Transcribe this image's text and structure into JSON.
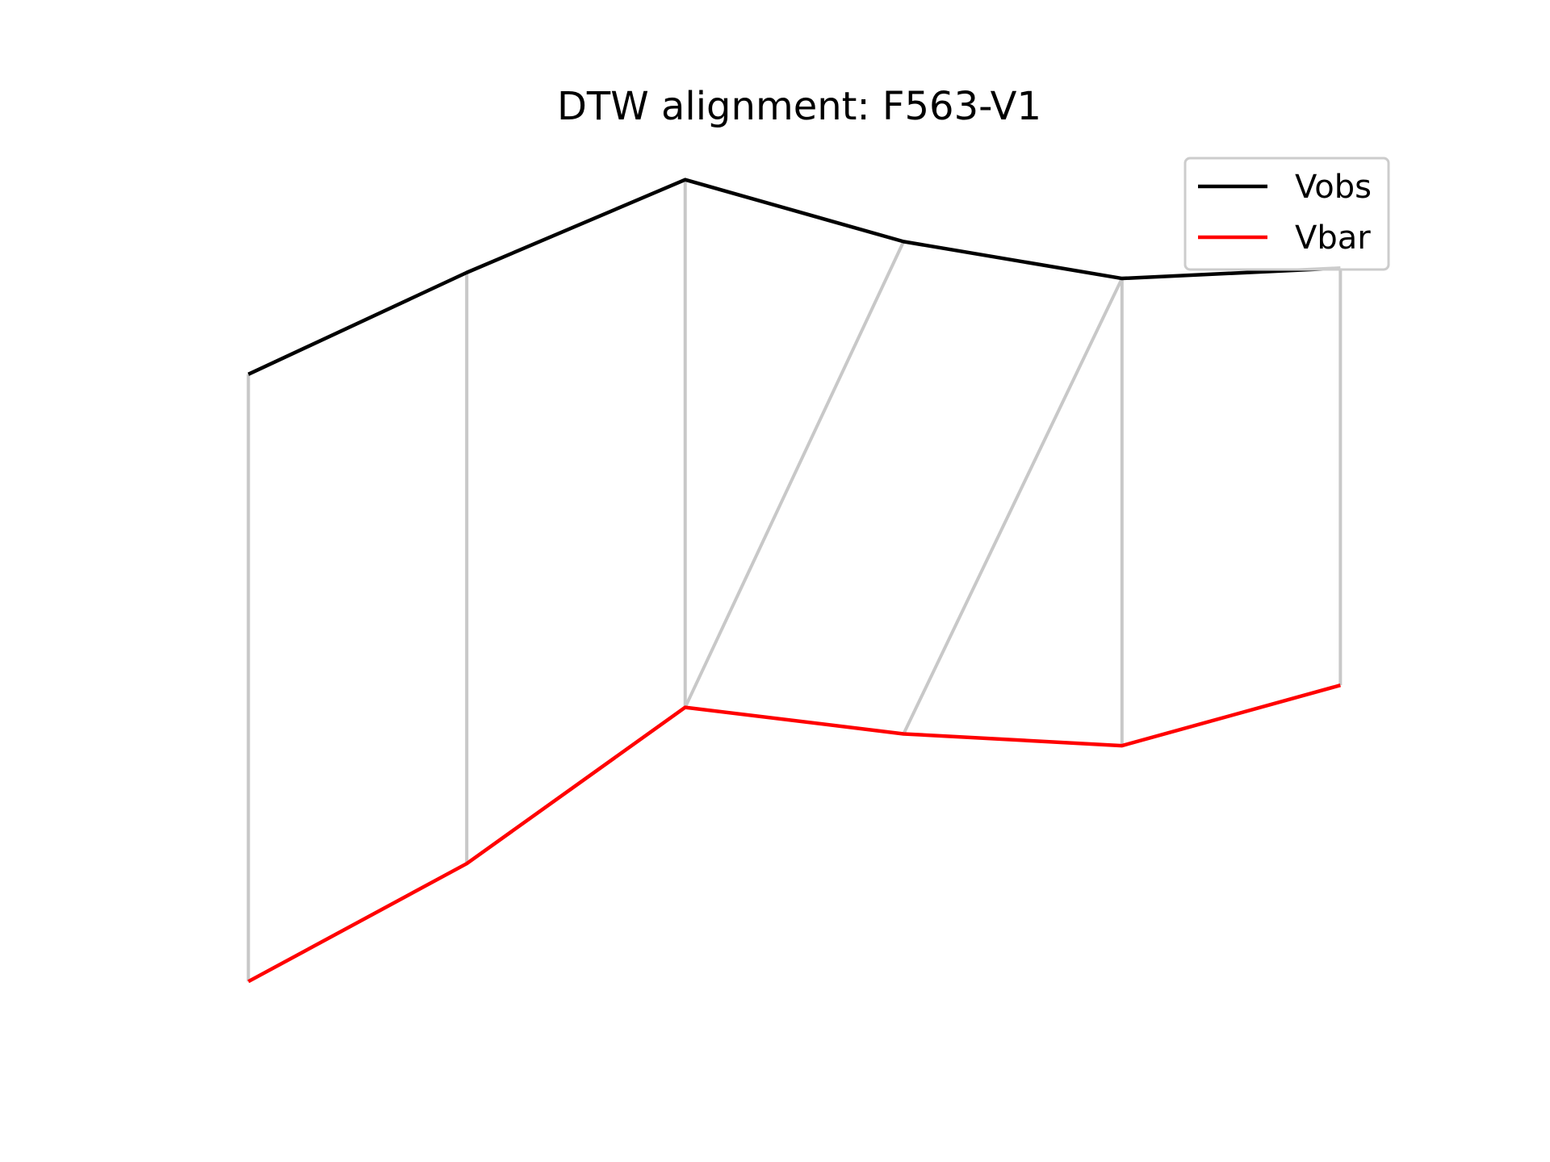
{
  "chart_data": {
    "type": "line",
    "title": "DTW alignment: F563-V1",
    "xlabel": "",
    "ylabel": "",
    "axes_visible": false,
    "grid": false,
    "legend_position": "top-right",
    "x": [
      0,
      1,
      2,
      3,
      4,
      5
    ],
    "series": [
      {
        "name": "Vobs",
        "color": "#000000",
        "values": [
          0.62,
          1.31,
          1.94,
          1.52,
          1.27,
          1.34
        ]
      },
      {
        "name": "Vbar",
        "color": "#ff0000",
        "values": [
          -3.5,
          -2.7,
          -1.64,
          -1.82,
          -1.9,
          -1.49
        ]
      }
    ],
    "alignment": {
      "color": "#c8c8c8",
      "pairs": [
        [
          0,
          0
        ],
        [
          1,
          1
        ],
        [
          2,
          2
        ],
        [
          3,
          2
        ],
        [
          4,
          3
        ],
        [
          4,
          4
        ],
        [
          5,
          5
        ]
      ]
    }
  }
}
